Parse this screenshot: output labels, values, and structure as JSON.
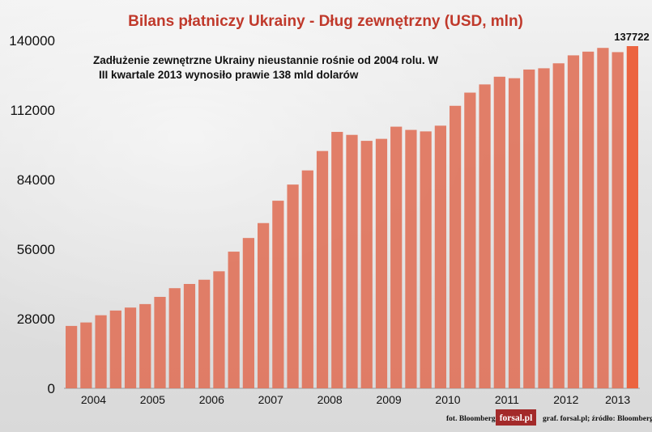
{
  "chart_data": {
    "type": "bar",
    "title": "Bilans płatniczy Ukrainy - Dług zewnętrzny (USD, mln)",
    "annotation": {
      "line1": "Zadłużenie zewnętrzne Ukrainy nieustannie rośnie od 2004 rolu. W",
      "line2": "III kwartale 2013 wynosiło prawie 138 mld dolarów"
    },
    "yticks": [
      0,
      28000,
      56000,
      84000,
      112000,
      140000
    ],
    "ylim": [
      0,
      140000
    ],
    "year_labels": [
      "2004",
      "2005",
      "2006",
      "2007",
      "2008",
      "2009",
      "2010",
      "2011",
      "2012",
      "2013"
    ],
    "categories": [
      "2004 Q1",
      "2004 Q2",
      "2004 Q3",
      "2004 Q4",
      "2005 Q1",
      "2005 Q2",
      "2005 Q3",
      "2005 Q4",
      "2006 Q1",
      "2006 Q2",
      "2006 Q3",
      "2006 Q4",
      "2007 Q1",
      "2007 Q2",
      "2007 Q3",
      "2007 Q4",
      "2008 Q1",
      "2008 Q2",
      "2008 Q3",
      "2008 Q4",
      "2009 Q1",
      "2009 Q2",
      "2009 Q3",
      "2009 Q4",
      "2010 Q1",
      "2010 Q2",
      "2010 Q3",
      "2010 Q4",
      "2011 Q1",
      "2011 Q2",
      "2011 Q3",
      "2011 Q4",
      "2012 Q1",
      "2012 Q2",
      "2012 Q3",
      "2012 Q4",
      "2013 Q1",
      "2013 Q2",
      "2013 Q3"
    ],
    "values": [
      25100,
      26500,
      29400,
      31300,
      32500,
      33900,
      36800,
      40300,
      42000,
      43700,
      47100,
      55000,
      60500,
      66500,
      75500,
      82000,
      87700,
      95500,
      103200,
      102000,
      99600,
      100400,
      105300,
      104000,
      103400,
      105700,
      113700,
      119000,
      122300,
      125400,
      124800,
      128300,
      128800,
      130800,
      134000,
      135500,
      137000,
      135300,
      137722
    ],
    "data_labels": [
      {
        "index": 38,
        "text": "137722"
      }
    ],
    "colors": {
      "bar": "#e0745c",
      "bar_highlight": "#ec6440",
      "title": "#c0392b",
      "logo_bg": "#a32a2a"
    }
  },
  "footer": {
    "photo_credit": "fot. Bloomberg",
    "logo_text": "forsal.pl",
    "source_credit": "graf. forsal.pl;  źródło: Bloomberg"
  }
}
